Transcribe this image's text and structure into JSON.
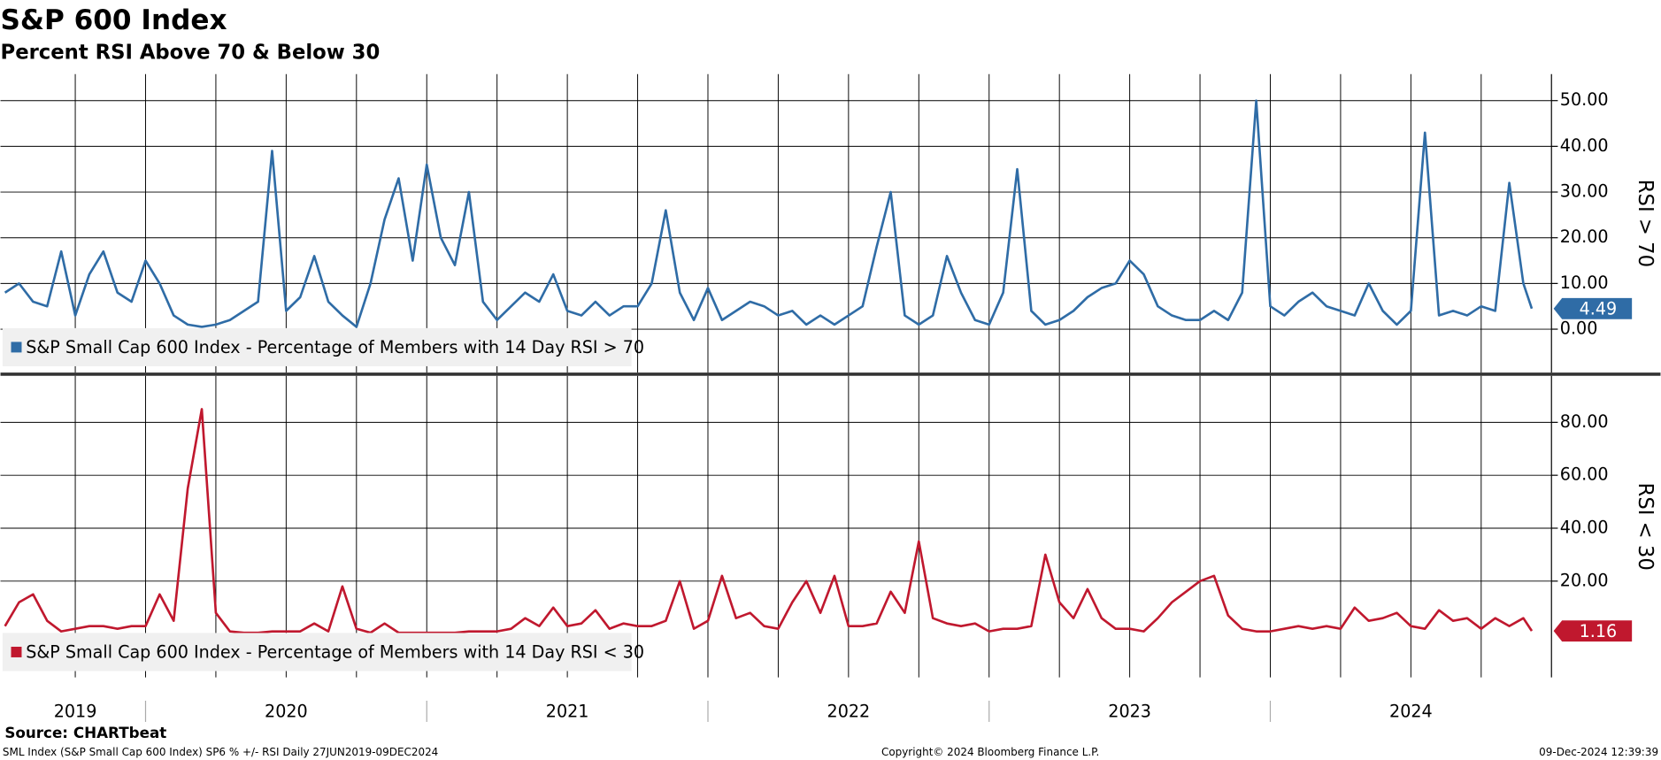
{
  "header": {
    "title": "S&P 600 Index",
    "subtitle": "Percent RSI Above 70 & Below 30"
  },
  "footer": {
    "source": "Source: CHARTbeat",
    "left": "SML Index (S&P Small Cap 600 Index) SP6 % +/- RSI  Daily 27JUN2019-09DEC2024",
    "center": "Copyright© 2024 Bloomberg Finance L.P.",
    "right": "09-Dec-2024 12:39:39"
  },
  "chart_data": [
    {
      "type": "line",
      "ylabel": "RSI > 70",
      "xlim": [
        2019.484,
        2025.0
      ],
      "ylim": [
        -9.5,
        55.8
      ],
      "yticks": [
        {
          "value": 0,
          "label": "0.00"
        },
        {
          "value": 10,
          "label": "10.00"
        },
        {
          "value": 20,
          "label": "20.00"
        },
        {
          "value": 30,
          "label": "30.00"
        },
        {
          "value": 40,
          "label": "40.00"
        },
        {
          "value": 50,
          "label": "50.00"
        }
      ],
      "xminorticks": [
        2019.75,
        2020,
        2020.25,
        2020.5,
        2020.75,
        2021,
        2021.25,
        2021.5,
        2021.75,
        2022,
        2022.25,
        2022.5,
        2022.75,
        2023,
        2023.25,
        2023.5,
        2023.75,
        2024,
        2024.25,
        2024.5,
        2024.75
      ],
      "grid": true,
      "x": [
        2019.5,
        2019.55,
        2019.6,
        2019.65,
        2019.7,
        2019.75,
        2019.8,
        2019.85,
        2019.9,
        2019.95,
        2020.0,
        2020.05,
        2020.1,
        2020.15,
        2020.2,
        2020.25,
        2020.3,
        2020.35,
        2020.4,
        2020.45,
        2020.5,
        2020.55,
        2020.6,
        2020.65,
        2020.7,
        2020.75,
        2020.8,
        2020.85,
        2020.9,
        2020.95,
        2021.0,
        2021.05,
        2021.1,
        2021.15,
        2021.2,
        2021.25,
        2021.3,
        2021.35,
        2021.4,
        2021.45,
        2021.5,
        2021.55,
        2021.6,
        2021.65,
        2021.7,
        2021.75,
        2021.8,
        2021.85,
        2021.9,
        2021.95,
        2022.0,
        2022.05,
        2022.1,
        2022.15,
        2022.2,
        2022.25,
        2022.3,
        2022.35,
        2022.4,
        2022.45,
        2022.5,
        2022.55,
        2022.6,
        2022.65,
        2022.7,
        2022.75,
        2022.8,
        2022.85,
        2022.9,
        2022.95,
        2023.0,
        2023.05,
        2023.1,
        2023.15,
        2023.2,
        2023.25,
        2023.3,
        2023.35,
        2023.4,
        2023.45,
        2023.5,
        2023.55,
        2023.6,
        2023.65,
        2023.7,
        2023.75,
        2023.8,
        2023.85,
        2023.9,
        2023.95,
        2024.0,
        2024.05,
        2024.1,
        2024.15,
        2024.2,
        2024.25,
        2024.3,
        2024.35,
        2024.4,
        2024.45,
        2024.5,
        2024.55,
        2024.6,
        2024.65,
        2024.7,
        2024.75,
        2024.8,
        2024.85,
        2024.9,
        2024.93
      ],
      "series": [
        {
          "name": "S&P Small Cap 600 Index - Percentage of Members with 14 Day RSI > 70",
          "color": "#2f6ca6",
          "values": [
            8,
            10,
            6,
            5,
            17,
            3,
            12,
            17,
            8,
            6,
            15,
            10,
            3,
            1,
            0.5,
            1,
            2,
            4,
            6,
            39,
            4,
            7,
            16,
            6,
            3,
            0.5,
            10,
            24,
            33,
            15,
            36,
            20,
            14,
            30,
            6,
            2,
            5,
            8,
            6,
            12,
            4,
            3,
            6,
            3,
            5,
            5,
            10,
            26,
            8,
            2,
            9,
            2,
            4,
            6,
            5,
            3,
            4,
            1,
            3,
            1,
            3,
            5,
            18,
            30,
            3,
            1,
            3,
            16,
            8,
            2,
            1,
            8,
            35,
            4,
            1,
            2,
            4,
            7,
            9,
            10,
            15,
            12,
            5,
            3,
            2,
            2,
            4,
            2,
            8,
            50,
            5,
            3,
            6,
            8,
            5,
            4,
            3,
            10,
            4,
            1,
            4,
            43,
            3,
            4,
            3,
            5,
            4,
            32,
            10,
            4.49
          ]
        }
      ]
    },
    {
      "type": "line",
      "ylabel": "RSI < 30",
      "xlim": [
        2019.484,
        2025.0
      ],
      "ylim": [
        -16.4,
        97.6
      ],
      "yticks": [
        {
          "value": 20,
          "label": "20.00"
        },
        {
          "value": 40,
          "label": "40.00"
        },
        {
          "value": 60,
          "label": "60.00"
        },
        {
          "value": 80,
          "label": "80.00"
        }
      ],
      "xticks": [
        {
          "value": 2019.75,
          "label": "2019"
        },
        {
          "value": 2020.5,
          "label": "2020"
        },
        {
          "value": 2021.5,
          "label": "2021"
        },
        {
          "value": 2022.5,
          "label": "2022"
        },
        {
          "value": 2023.5,
          "label": "2023"
        },
        {
          "value": 2024.5,
          "label": "2024"
        }
      ],
      "xminorticks": [
        2019.75,
        2020,
        2020.25,
        2020.5,
        2020.75,
        2021,
        2021.25,
        2021.5,
        2021.75,
        2022,
        2022.25,
        2022.5,
        2022.75,
        2023,
        2023.25,
        2023.5,
        2023.75,
        2024,
        2024.25,
        2024.5,
        2024.75
      ],
      "grid": true,
      "x": [
        2019.5,
        2019.55,
        2019.6,
        2019.65,
        2019.7,
        2019.75,
        2019.8,
        2019.85,
        2019.9,
        2019.95,
        2020.0,
        2020.05,
        2020.1,
        2020.15,
        2020.2,
        2020.25,
        2020.3,
        2020.35,
        2020.4,
        2020.45,
        2020.5,
        2020.55,
        2020.6,
        2020.65,
        2020.7,
        2020.75,
        2020.8,
        2020.85,
        2020.9,
        2020.95,
        2021.0,
        2021.05,
        2021.1,
        2021.15,
        2021.2,
        2021.25,
        2021.3,
        2021.35,
        2021.4,
        2021.45,
        2021.5,
        2021.55,
        2021.6,
        2021.65,
        2021.7,
        2021.75,
        2021.8,
        2021.85,
        2021.9,
        2021.95,
        2022.0,
        2022.05,
        2022.1,
        2022.15,
        2022.2,
        2022.25,
        2022.3,
        2022.35,
        2022.4,
        2022.45,
        2022.5,
        2022.55,
        2022.6,
        2022.65,
        2022.7,
        2022.75,
        2022.8,
        2022.85,
        2022.9,
        2022.95,
        2023.0,
        2023.05,
        2023.1,
        2023.15,
        2023.2,
        2023.25,
        2023.3,
        2023.35,
        2023.4,
        2023.45,
        2023.5,
        2023.55,
        2023.6,
        2023.65,
        2023.7,
        2023.75,
        2023.8,
        2023.85,
        2023.9,
        2023.95,
        2024.0,
        2024.05,
        2024.1,
        2024.15,
        2024.2,
        2024.25,
        2024.3,
        2024.35,
        2024.4,
        2024.45,
        2024.5,
        2024.55,
        2024.6,
        2024.65,
        2024.7,
        2024.75,
        2024.8,
        2024.85,
        2024.9,
        2024.93
      ],
      "series": [
        {
          "name": "S&P Small Cap 600 Index - Percentage of Members with 14 Day RSI < 30",
          "color": "#c0182e",
          "values": [
            3,
            12,
            15,
            5,
            1,
            2,
            3,
            3,
            2,
            3,
            3,
            15,
            5,
            55,
            85,
            8,
            1,
            0.5,
            0.5,
            1,
            1,
            1,
            4,
            1,
            18,
            2,
            0.5,
            4,
            0.5,
            0.5,
            0.5,
            0.5,
            0.5,
            1,
            1,
            1,
            2,
            6,
            3,
            10,
            3,
            4,
            9,
            2,
            4,
            3,
            3,
            5,
            20,
            2,
            5,
            22,
            6,
            8,
            3,
            2,
            12,
            20,
            8,
            22,
            3,
            3,
            4,
            16,
            8,
            35,
            6,
            4,
            3,
            4,
            1,
            2,
            2,
            3,
            30,
            12,
            6,
            17,
            6,
            2,
            2,
            1,
            6,
            12,
            16,
            20,
            22,
            7,
            2,
            1,
            1,
            2,
            3,
            2,
            3,
            2,
            10,
            5,
            6,
            8,
            3,
            2,
            9,
            5,
            6,
            2,
            6,
            3,
            6,
            1.16
          ]
        }
      ]
    }
  ]
}
